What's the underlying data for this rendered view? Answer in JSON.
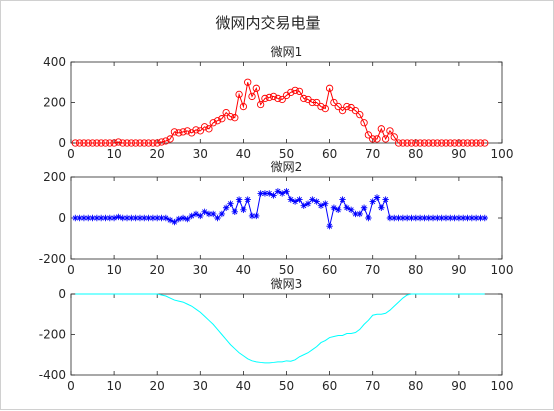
{
  "figure": {
    "suptitle": "微网内交易电量"
  },
  "chart_data": [
    {
      "type": "line",
      "title": "微网1",
      "marker": "circle",
      "color": "#ff0000",
      "xlim": [
        0,
        100
      ],
      "ylim": [
        0,
        400
      ],
      "xticks": [
        0,
        10,
        20,
        30,
        40,
        50,
        60,
        70,
        80,
        90,
        100
      ],
      "yticks": [
        0,
        200,
        400
      ],
      "x": [
        1,
        2,
        3,
        4,
        5,
        6,
        7,
        8,
        9,
        10,
        11,
        12,
        13,
        14,
        15,
        16,
        17,
        18,
        19,
        20,
        21,
        22,
        23,
        24,
        25,
        26,
        27,
        28,
        29,
        30,
        31,
        32,
        33,
        34,
        35,
        36,
        37,
        38,
        39,
        40,
        41,
        42,
        43,
        44,
        45,
        46,
        47,
        48,
        49,
        50,
        51,
        52,
        53,
        54,
        55,
        56,
        57,
        58,
        59,
        60,
        61,
        62,
        63,
        64,
        65,
        66,
        67,
        68,
        69,
        70,
        71,
        72,
        73,
        74,
        75,
        76,
        77,
        78,
        79,
        80,
        81,
        82,
        83,
        84,
        85,
        86,
        87,
        88,
        89,
        90,
        91,
        92,
        93,
        94,
        95,
        96
      ],
      "y": [
        0,
        0,
        0,
        0,
        0,
        0,
        0,
        0,
        0,
        0,
        5,
        0,
        0,
        0,
        0,
        0,
        0,
        0,
        0,
        0,
        5,
        10,
        20,
        55,
        50,
        55,
        60,
        50,
        65,
        60,
        80,
        70,
        100,
        110,
        120,
        150,
        130,
        125,
        240,
        180,
        300,
        230,
        270,
        190,
        220,
        225,
        230,
        220,
        215,
        235,
        250,
        260,
        255,
        220,
        215,
        200,
        200,
        180,
        170,
        270,
        200,
        180,
        160,
        180,
        175,
        160,
        140,
        100,
        40,
        20,
        20,
        70,
        20,
        60,
        30,
        0,
        0,
        0,
        0,
        0,
        0,
        0,
        0,
        0,
        0,
        0,
        0,
        0,
        0,
        0,
        0,
        0,
        0,
        0,
        0,
        0
      ]
    },
    {
      "type": "line",
      "title": "微网2",
      "marker": "star",
      "color": "#0000ff",
      "xlim": [
        0,
        100
      ],
      "ylim": [
        -200,
        200
      ],
      "xticks": [
        0,
        10,
        20,
        30,
        40,
        50,
        60,
        70,
        80,
        90,
        100
      ],
      "yticks": [
        -200,
        0,
        200
      ],
      "x": [
        1,
        2,
        3,
        4,
        5,
        6,
        7,
        8,
        9,
        10,
        11,
        12,
        13,
        14,
        15,
        16,
        17,
        18,
        19,
        20,
        21,
        22,
        23,
        24,
        25,
        26,
        27,
        28,
        29,
        30,
        31,
        32,
        33,
        34,
        35,
        36,
        37,
        38,
        39,
        40,
        41,
        42,
        43,
        44,
        45,
        46,
        47,
        48,
        49,
        50,
        51,
        52,
        53,
        54,
        55,
        56,
        57,
        58,
        59,
        60,
        61,
        62,
        63,
        64,
        65,
        66,
        67,
        68,
        69,
        70,
        71,
        72,
        73,
        74,
        75,
        76,
        77,
        78,
        79,
        80,
        81,
        82,
        83,
        84,
        85,
        86,
        87,
        88,
        89,
        90,
        91,
        92,
        93,
        94,
        95,
        96
      ],
      "y": [
        0,
        0,
        0,
        0,
        0,
        0,
        0,
        0,
        0,
        0,
        5,
        0,
        0,
        0,
        0,
        0,
        0,
        0,
        0,
        0,
        0,
        0,
        -10,
        -20,
        -5,
        0,
        -5,
        10,
        20,
        10,
        30,
        20,
        20,
        0,
        20,
        50,
        70,
        30,
        90,
        40,
        90,
        10,
        10,
        120,
        120,
        120,
        110,
        130,
        120,
        130,
        90,
        80,
        90,
        60,
        70,
        90,
        80,
        60,
        70,
        -40,
        50,
        40,
        90,
        50,
        40,
        20,
        20,
        50,
        0,
        80,
        100,
        50,
        90,
        0,
        0,
        0,
        0,
        0,
        0,
        0,
        0,
        0,
        0,
        0,
        0,
        0,
        0,
        0,
        0,
        0,
        0,
        0,
        0,
        0,
        0,
        0
      ]
    },
    {
      "type": "line",
      "title": "微网3",
      "marker": "none",
      "color": "#00ffff",
      "xlim": [
        0,
        100
      ],
      "ylim": [
        -400,
        0
      ],
      "xticks": [
        0,
        10,
        20,
        30,
        40,
        50,
        60,
        70,
        80,
        90,
        100
      ],
      "yticks": [
        -400,
        -200,
        0
      ],
      "x": [
        1,
        5,
        10,
        15,
        20,
        21,
        22,
        23,
        24,
        25,
        26,
        27,
        28,
        29,
        30,
        31,
        32,
        33,
        34,
        35,
        36,
        37,
        38,
        39,
        40,
        41,
        42,
        43,
        44,
        45,
        46,
        47,
        48,
        49,
        50,
        51,
        52,
        53,
        54,
        55,
        56,
        57,
        58,
        59,
        60,
        61,
        62,
        63,
        64,
        65,
        66,
        67,
        68,
        69,
        70,
        71,
        72,
        73,
        74,
        75,
        76,
        77,
        78,
        79,
        80,
        85,
        90,
        96
      ],
      "y": [
        0,
        0,
        0,
        0,
        0,
        -5,
        -10,
        -20,
        -30,
        -35,
        -40,
        -50,
        -60,
        -75,
        -90,
        -110,
        -130,
        -150,
        -175,
        -200,
        -225,
        -250,
        -270,
        -290,
        -305,
        -320,
        -330,
        -335,
        -338,
        -340,
        -340,
        -338,
        -335,
        -335,
        -330,
        -332,
        -325,
        -310,
        -300,
        -290,
        -275,
        -260,
        -240,
        -230,
        -215,
        -210,
        -205,
        -205,
        -195,
        -195,
        -190,
        -175,
        -150,
        -130,
        -105,
        -100,
        -100,
        -95,
        -80,
        -60,
        -40,
        -20,
        -5,
        0,
        0,
        0,
        0,
        0
      ]
    }
  ]
}
